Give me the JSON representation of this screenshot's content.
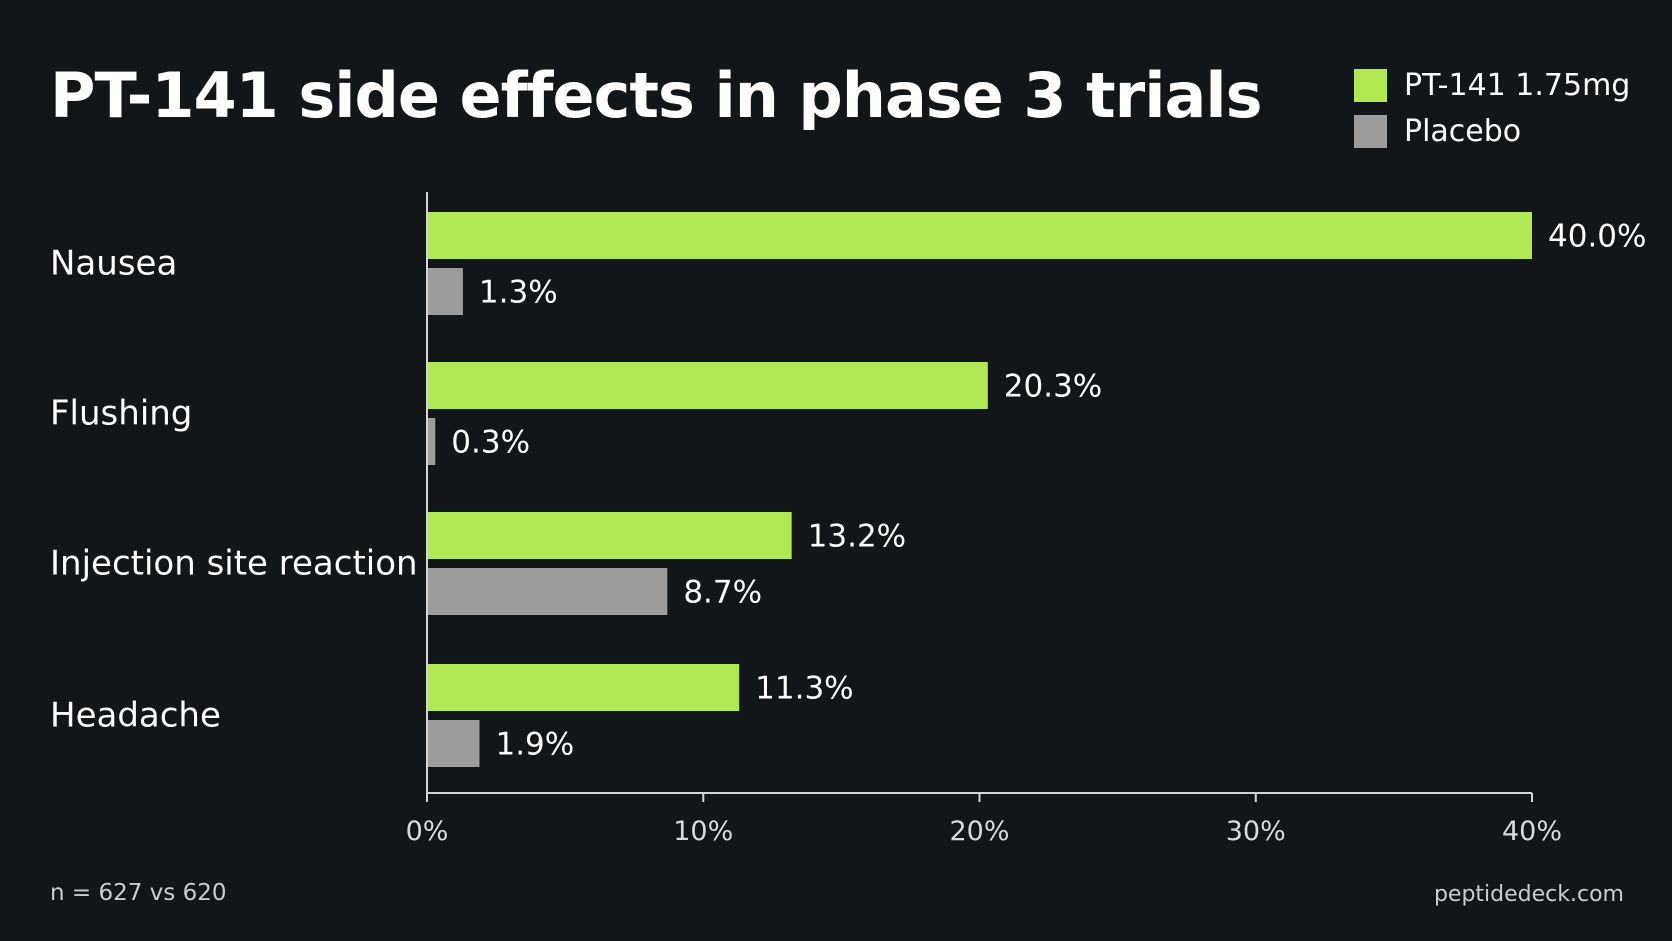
{
  "title": "PT-141 side effects in phase 3 trials",
  "footnote": "n = 627 vs 620",
  "source": "peptidedeck.com",
  "colors": {
    "background": "#131619",
    "drug": "#b3e855",
    "placebo": "#9c9c9c",
    "axis": "#d2d4d8"
  },
  "chart_data": {
    "type": "bar",
    "orientation": "horizontal",
    "categories": [
      "Nausea",
      "Flushing",
      "Injection site reaction",
      "Headache"
    ],
    "series": [
      {
        "name": "PT-141 1.75mg",
        "values": [
          40.0,
          20.3,
          13.2,
          11.3
        ],
        "labels": [
          "40.0%",
          "20.3%",
          "13.2%",
          "11.3%"
        ]
      },
      {
        "name": "Placebo",
        "values": [
          1.3,
          0.3,
          8.7,
          1.9
        ],
        "labels": [
          "1.3%",
          "0.3%",
          "8.7%",
          "1.9%"
        ]
      }
    ],
    "xlim": [
      0,
      40
    ],
    "xticks": [
      0,
      10,
      20,
      30,
      40
    ],
    "xtick_labels": [
      "0%",
      "10%",
      "20%",
      "30%",
      "40%"
    ],
    "legend": "top-right",
    "grid": false,
    "xlabel": "",
    "ylabel": ""
  }
}
